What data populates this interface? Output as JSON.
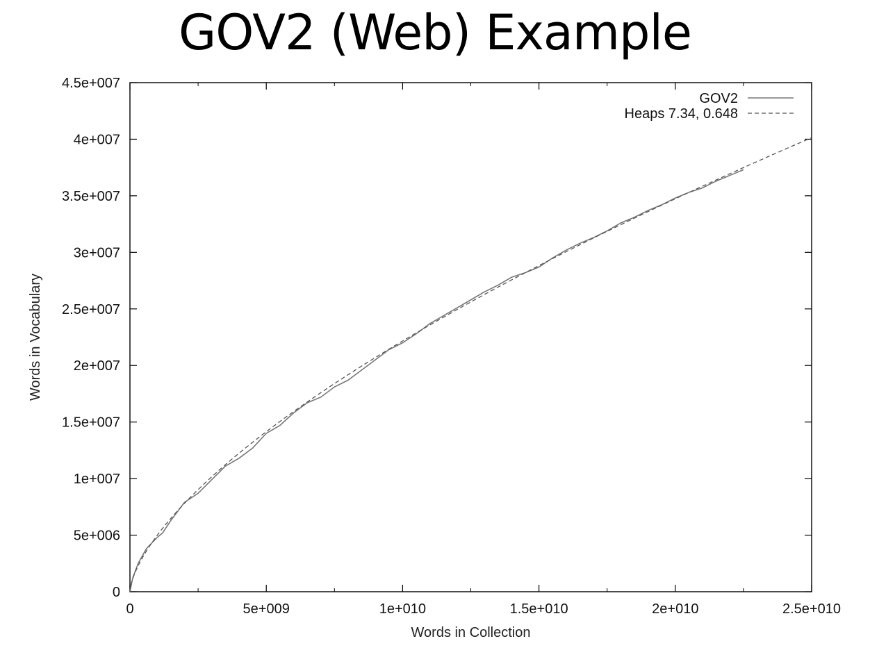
{
  "page": {
    "title": "GOV2 (Web) Example"
  },
  "chart_data": {
    "type": "line",
    "xlabel": "Words in Collection",
    "ylabel": "Words in Vocabulary",
    "xlim": [
      0,
      25000000000
    ],
    "ylim": [
      0,
      45000000
    ],
    "x_ticks": [
      {
        "value": 0,
        "label": "0"
      },
      {
        "value": 5000000000,
        "label": "5e+009"
      },
      {
        "value": 10000000000,
        "label": "1e+010"
      },
      {
        "value": 15000000000,
        "label": "1.5e+010"
      },
      {
        "value": 20000000000,
        "label": "2e+010"
      },
      {
        "value": 25000000000,
        "label": "2.5e+010"
      }
    ],
    "y_ticks": [
      {
        "value": 0,
        "label": "0"
      },
      {
        "value": 5000000,
        "label": "5e+006"
      },
      {
        "value": 10000000,
        "label": "1e+007"
      },
      {
        "value": 15000000,
        "label": "1.5e+007"
      },
      {
        "value": 20000000,
        "label": "2e+007"
      },
      {
        "value": 25000000,
        "label": "2.5e+007"
      },
      {
        "value": 30000000,
        "label": "3e+007"
      },
      {
        "value": 35000000,
        "label": "3.5e+007"
      },
      {
        "value": 40000000,
        "label": "4e+007"
      },
      {
        "value": 45000000,
        "label": "4.5e+007"
      }
    ],
    "grid": false,
    "legend_position": "top-right",
    "series": [
      {
        "name": "GOV2",
        "style": "solid",
        "color": "#777777",
        "x": [
          0,
          100000000,
          300000000,
          600000000,
          1000000000,
          1200000000,
          1500000000,
          2000000000,
          2500000000,
          3000000000,
          3500000000,
          4000000000,
          4500000000,
          5000000000,
          5500000000,
          6000000000,
          6500000000,
          7000000000,
          7500000000,
          8000000000,
          8500000000,
          9000000000,
          9500000000,
          10000000000,
          10500000000,
          11000000000,
          11500000000,
          12000000000,
          12500000000,
          13000000000,
          13500000000,
          14000000000,
          14500000000,
          15000000000,
          15500000000,
          16000000000,
          16500000000,
          17000000000,
          17500000000,
          18000000000,
          18500000000,
          19000000000,
          19500000000,
          20000000000,
          20500000000,
          21000000000,
          21500000000,
          22000000000,
          22500000000
        ],
        "y": [
          0,
          1200000,
          2500000,
          3800000,
          4800000,
          5200000,
          6300000,
          7900000,
          8700000,
          9900000,
          11100000,
          11800000,
          12700000,
          14000000,
          14700000,
          15800000,
          16700000,
          17200000,
          18100000,
          18700000,
          19600000,
          20500000,
          21400000,
          22000000,
          22800000,
          23700000,
          24400000,
          25100000,
          25800000,
          26500000,
          27100000,
          27800000,
          28200000,
          28700000,
          29500000,
          30200000,
          30800000,
          31300000,
          31900000,
          32600000,
          33100000,
          33700000,
          34200000,
          34800000,
          35300000,
          35700000,
          36300000,
          36800000,
          37300000
        ]
      },
      {
        "name": "Heaps 7.34, 0.648",
        "style": "dashed",
        "color": "#555555",
        "function": "7.34 * x^0.648"
      }
    ]
  }
}
